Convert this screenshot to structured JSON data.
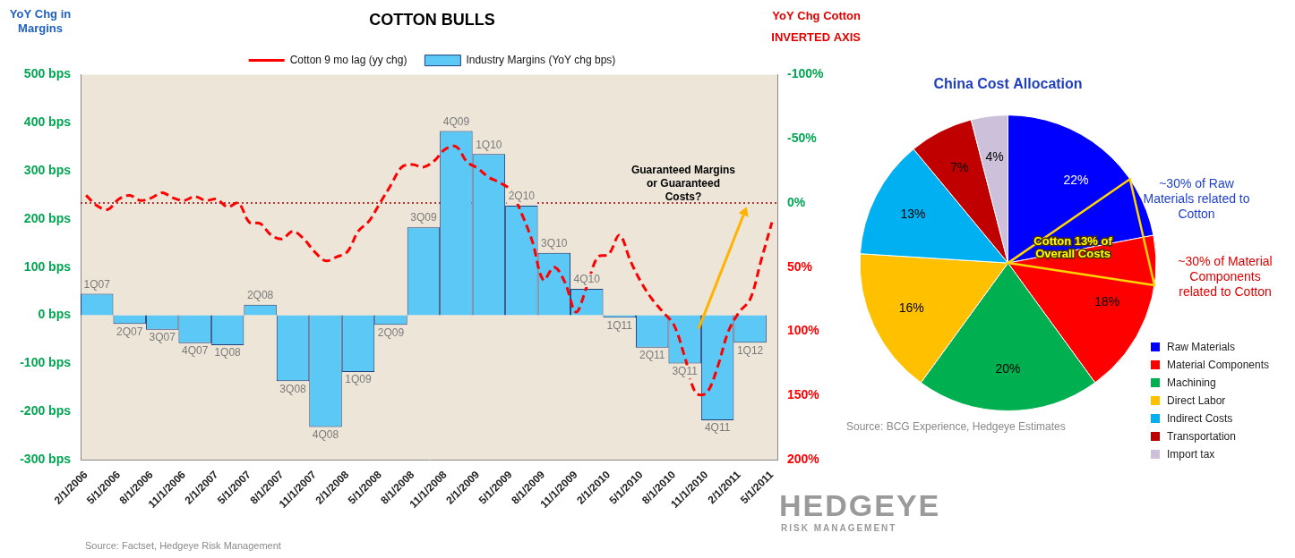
{
  "chart_data": [
    {
      "type": "bar",
      "title": "COTTON BULLS",
      "ylabel": "YoY Chg in Margins",
      "y2label": "YoY Chg Cotton",
      "annotations": [
        "INVERTED AXIS",
        "Guaranteed Margins or Guaranteed Costs?"
      ],
      "source": "Source: Factset, Hedgeye Risk Management",
      "categories": [
        "2/1/2006",
        null,
        null,
        "5/1/2006",
        null,
        null,
        "8/1/2006",
        null,
        null,
        "11/1/2006",
        null,
        null,
        "2/1/2007",
        null,
        null,
        "5/1/2007",
        null,
        null,
        "8/1/2007",
        null,
        null,
        "11/1/2007",
        null,
        null,
        "2/1/2008",
        null,
        null,
        "5/1/2008",
        null,
        null,
        "8/1/2008",
        null,
        null,
        "11/1/2008",
        null,
        null,
        "2/1/2009",
        null,
        null,
        "5/1/2009",
        null,
        null,
        "8/1/2009",
        null,
        null,
        "11/1/2009",
        null,
        null,
        "2/1/2010",
        null,
        null,
        "5/1/2010",
        null,
        null,
        "8/1/2010",
        null,
        null,
        "11/1/2010",
        null,
        null,
        "2/1/2011",
        null,
        null,
        "5/1/2011"
      ],
      "series": [
        {
          "name": "Industry Margins (YoY chg bps)",
          "type": "bar",
          "color": "#5bc8f5",
          "values": [
            null,
            45,
            null,
            null,
            -18,
            null,
            null,
            -30,
            null,
            null,
            -58,
            null,
            null,
            -62,
            null,
            null,
            22,
            null,
            null,
            -137,
            null,
            null,
            -232,
            null,
            null,
            -118,
            null,
            null,
            -20,
            null,
            null,
            183,
            null,
            null,
            383,
            null,
            null,
            335,
            null,
            null,
            228,
            null,
            null,
            130,
            null,
            null,
            55,
            null,
            null,
            -5,
            null,
            null,
            -67,
            null,
            null,
            -100,
            null,
            null,
            -218,
            null,
            null,
            -57,
            null,
            null
          ],
          "bar_labels": [
            null,
            "1Q07",
            null,
            null,
            "2Q07",
            null,
            null,
            "3Q07",
            null,
            null,
            "4Q07",
            null,
            null,
            "1Q08",
            null,
            null,
            "2Q08",
            null,
            null,
            "3Q08",
            null,
            null,
            "4Q08",
            null,
            null,
            "1Q09",
            null,
            null,
            "2Q09",
            null,
            null,
            "3Q09",
            null,
            null,
            "4Q09",
            null,
            null,
            "1Q10",
            null,
            null,
            "2Q10",
            null,
            null,
            "3Q10",
            null,
            null,
            "4Q10",
            null,
            null,
            "1Q11",
            null,
            null,
            "2Q11",
            null,
            null,
            "3Q11",
            null,
            null,
            "4Q11",
            null,
            null,
            "1Q12",
            null,
            null
          ]
        },
        {
          "name": "Cotton 9 mo lag (yy chg)",
          "type": "line",
          "color": "#ff0000",
          "line_style": "dashed",
          "axis": "y2",
          "values": [
            -6,
            2,
            5,
            -3,
            -6,
            -2,
            -4,
            -8,
            -4,
            -2,
            -5,
            -2,
            -3,
            3,
            0,
            15,
            16,
            25,
            28,
            22,
            28,
            38,
            45,
            42,
            38,
            22,
            14,
            0,
            -14,
            -28,
            -30,
            -28,
            -33,
            -42,
            -44,
            -32,
            -27,
            -20,
            -16,
            -10,
            8,
            30,
            60,
            50,
            62,
            85,
            65,
            42,
            40,
            25,
            45,
            62,
            75,
            85,
            95,
            120,
            148,
            148,
            128,
            100,
            85,
            75,
            45,
            15
          ]
        }
      ],
      "ylim": [
        -300,
        500
      ],
      "yticks": [
        {
          "value": -300,
          "label": "-300 bps"
        },
        {
          "value": -200,
          "label": "-200 bps"
        },
        {
          "value": -100,
          "label": "-100 bps"
        },
        {
          "value": 0,
          "label": "0 bps"
        },
        {
          "value": 100,
          "label": "100 bps"
        },
        {
          "value": 200,
          "label": "200 bps"
        },
        {
          "value": 300,
          "label": "300 bps"
        },
        {
          "value": 400,
          "label": "400 bps"
        },
        {
          "value": 500,
          "label": "500 bps"
        }
      ],
      "y2lim": [
        200,
        -100
      ],
      "y2ticks": [
        {
          "value": -100,
          "label": "-100%"
        },
        {
          "value": -50,
          "label": "-50%"
        },
        {
          "value": 0,
          "label": "0%"
        },
        {
          "value": 50,
          "label": "50%"
        },
        {
          "value": 100,
          "label": "100%"
        },
        {
          "value": 150,
          "label": "150%"
        },
        {
          "value": 200,
          "label": "200%"
        }
      ],
      "grid": false,
      "legend": "top"
    },
    {
      "type": "pie",
      "title": "China Cost Allocation",
      "categories": [
        "Raw Materials",
        "Material Components",
        "Machining",
        "Direct Labor",
        "Indirect Costs",
        "Transportation",
        "Import tax"
      ],
      "values": [
        22,
        18,
        20,
        16,
        13,
        7,
        4
      ],
      "value_labels": [
        "22%",
        "18%",
        "20%",
        "16%",
        "13%",
        "7%",
        "4%"
      ],
      "colors": [
        "#0000ff",
        "#ff0000",
        "#00b050",
        "#ffc000",
        "#00b0f0",
        "#c00000",
        "#ccc0da"
      ],
      "cotton_share": [
        30,
        30,
        null,
        null,
        null,
        null,
        null
      ],
      "annotations": [
        "~30% of Raw Materials related to Cotton",
        "~30% of Material Components related to Cotton",
        "Cotton 13% of Overall Costs"
      ],
      "source": "Source: BCG Experience, Hedgeye Estimates",
      "data_labels": true,
      "legend": "right"
    }
  ],
  "logo": {
    "text": "HEDGEYE",
    "subtext": "RISK MANAGEMENT"
  }
}
